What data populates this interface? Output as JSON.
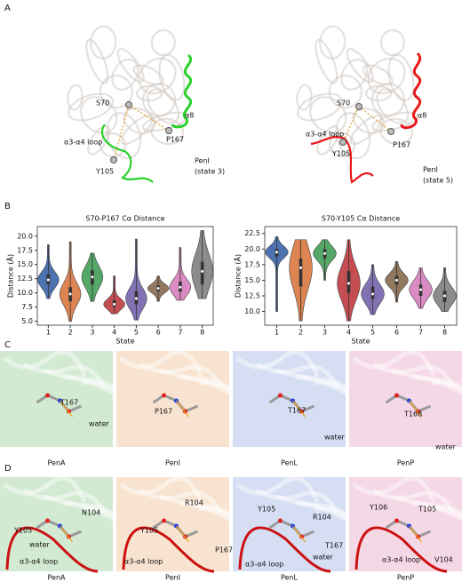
{
  "panel_a": {
    "letter": "A",
    "structures": [
      {
        "color": "#2bd12b",
        "labels": [
          "S70",
          "α8",
          "P167",
          "α3-α4 loop",
          "Y105",
          "PenI",
          "(state 3)"
        ]
      },
      {
        "color": "#e81818",
        "labels": [
          "S70",
          "α8",
          "P167",
          "α3-α4 loop",
          "Y105",
          "PenI",
          "(state 5)"
        ]
      }
    ]
  },
  "panel_b": {
    "letter": "B"
  },
  "chart_data": [
    {
      "type": "violin",
      "title": "S70-P167 Cα Distance",
      "x_label": "State",
      "y_label": "Distance (Å)",
      "categories": [
        "1",
        "2",
        "3",
        "4",
        "5",
        "6",
        "7",
        "8"
      ],
      "colors": [
        "#4c72b0",
        "#dd8452",
        "#55a868",
        "#c44e52",
        "#8172b3",
        "#937860",
        "#da8bc3",
        "#8c8c8c"
      ],
      "min": [
        9,
        5,
        8.5,
        6.3,
        5.2,
        8.5,
        8.7,
        9
      ],
      "q1": [
        11.5,
        8.5,
        11.5,
        7.5,
        8,
        10.3,
        10.2,
        11.5
      ],
      "median": [
        12.3,
        9.8,
        12.8,
        8,
        9,
        10.8,
        11,
        13.8
      ],
      "q3": [
        13.3,
        11,
        14,
        8.7,
        10.3,
        11.3,
        12,
        15.5
      ],
      "max": [
        18.5,
        19,
        17,
        13,
        19.5,
        13,
        18,
        21
      ],
      "ylim": [
        4.3,
        21.7
      ],
      "yticks": [
        {
          "value": 5,
          "label": "5.0"
        },
        {
          "value": 7.5,
          "label": "7.5"
        },
        {
          "value": 10,
          "label": "10.0"
        },
        {
          "value": 12.5,
          "label": "12.5"
        },
        {
          "value": 15,
          "label": "15.0"
        },
        {
          "value": 17.5,
          "label": "17.5"
        },
        {
          "value": 20,
          "label": "20.0"
        }
      ]
    },
    {
      "type": "violin",
      "title": "S70-Y105 Cα Distance",
      "x_label": "State",
      "y_label": "Distance (Å)",
      "categories": [
        "1",
        "2",
        "3",
        "4",
        "5",
        "6",
        "7",
        "8"
      ],
      "colors": [
        "#4c72b0",
        "#dd8452",
        "#55a868",
        "#c44e52",
        "#8172b3",
        "#937860",
        "#da8bc3",
        "#8c8c8c"
      ],
      "min": [
        10,
        8.5,
        15,
        8.5,
        9.5,
        11.5,
        10.5,
        10
      ],
      "q1": [
        18.8,
        14,
        18.5,
        13,
        12,
        14.3,
        12.5,
        11.5
      ],
      "median": [
        19.5,
        17,
        19.3,
        14.5,
        12.8,
        15,
        13.5,
        12.5
      ],
      "q3": [
        20,
        18.5,
        20,
        16.5,
        14,
        15.7,
        14.3,
        13.3
      ],
      "max": [
        22,
        21.5,
        21.5,
        21.5,
        17.5,
        18,
        17,
        17
      ],
      "ylim": [
        7.8,
        23.6
      ],
      "yticks": [
        {
          "value": 10,
          "label": "10.0"
        },
        {
          "value": 12.5,
          "label": "12.5"
        },
        {
          "value": 15,
          "label": "15.0"
        },
        {
          "value": 17.5,
          "label": "17.5"
        },
        {
          "value": 20,
          "label": "20.0"
        },
        {
          "value": 22.5,
          "label": "22.5"
        }
      ]
    }
  ],
  "panel_c": {
    "letter": "C",
    "tiles": [
      {
        "name": "PenA",
        "color": "#d2ead2",
        "labels": [
          "T167",
          "water"
        ]
      },
      {
        "name": "PenI",
        "color": "#f8e3d0",
        "labels": [
          "P167"
        ]
      },
      {
        "name": "PenL",
        "color": "#d6def3",
        "labels": [
          "T167",
          "water"
        ]
      },
      {
        "name": "PenP",
        "color": "#f5d8e6",
        "labels": [
          "T168",
          "water"
        ]
      }
    ]
  },
  "panel_d": {
    "letter": "D",
    "tiles": [
      {
        "name": "PenA",
        "color": "#d2ead2",
        "labels": [
          "Y105",
          "N104",
          "water",
          "α3-α4 loop"
        ]
      },
      {
        "name": "PenI",
        "color": "#f8e3d0",
        "labels": [
          "Y105",
          "R104",
          "P167",
          "α3-α4 loop"
        ]
      },
      {
        "name": "PenL",
        "color": "#d6def3",
        "labels": [
          "Y105",
          "R104",
          "T167",
          "water",
          "α3-α4 loop"
        ]
      },
      {
        "name": "PenP",
        "color": "#f5d8e6",
        "labels": [
          "Y106",
          "T105",
          "V104",
          "α3-α4 loop"
        ]
      }
    ]
  }
}
